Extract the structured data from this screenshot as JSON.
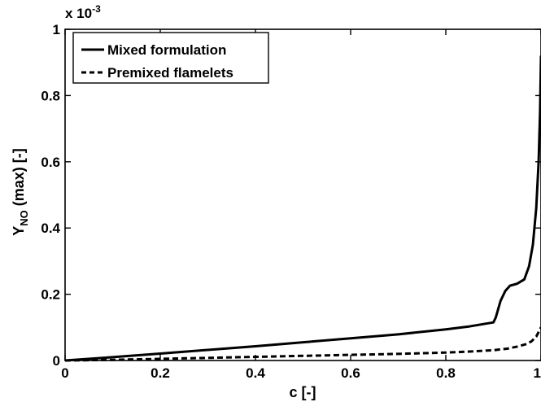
{
  "chart_data": {
    "type": "line",
    "title": "",
    "xlabel": "c [-]",
    "ylabel_parts": [
      "Y",
      "NO",
      " (max) [-]"
    ],
    "exponent_label": "x 10",
    "exponent_power": "-3",
    "xlim": [
      0,
      1
    ],
    "ylim": [
      0,
      1
    ],
    "xticks": [
      "0",
      "0.2",
      "0.4",
      "0.6",
      "0.8",
      "1"
    ],
    "yticks": [
      "0",
      "0.2",
      "0.4",
      "0.6",
      "0.8",
      "1"
    ],
    "grid": false,
    "legend_position": "top-left",
    "series": [
      {
        "name": "Mixed formulation",
        "style": "solid",
        "color": "#000000",
        "x": [
          0,
          0.1,
          0.2,
          0.3,
          0.4,
          0.5,
          0.6,
          0.7,
          0.8,
          0.85,
          0.9,
          0.905,
          0.915,
          0.925,
          0.935,
          0.95,
          0.965,
          0.975,
          0.983,
          0.99,
          0.995,
          0.998,
          1.0
        ],
        "y": [
          0,
          0.01,
          0.021,
          0.032,
          0.043,
          0.055,
          0.067,
          0.079,
          0.094,
          0.103,
          0.115,
          0.13,
          0.18,
          0.21,
          0.226,
          0.232,
          0.245,
          0.285,
          0.35,
          0.46,
          0.6,
          0.75,
          0.92
        ]
      },
      {
        "name": "Premixed flamelets",
        "style": "dashed",
        "color": "#000000",
        "x": [
          0,
          0.1,
          0.2,
          0.3,
          0.4,
          0.5,
          0.6,
          0.7,
          0.8,
          0.85,
          0.9,
          0.93,
          0.95,
          0.97,
          0.98,
          0.99,
          1.0
        ],
        "y": [
          0,
          0.002,
          0.005,
          0.008,
          0.011,
          0.014,
          0.017,
          0.02,
          0.024,
          0.027,
          0.031,
          0.036,
          0.042,
          0.05,
          0.058,
          0.072,
          0.1
        ]
      }
    ]
  }
}
